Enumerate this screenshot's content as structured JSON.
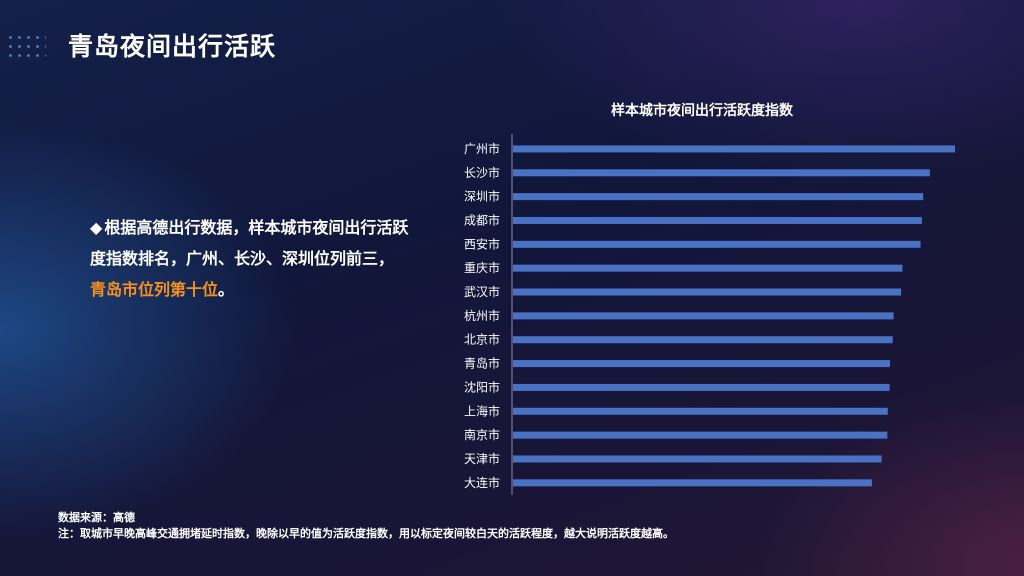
{
  "page": {
    "title": "青岛夜间出行活跃"
  },
  "bullet": {
    "marker": "◆",
    "text_before": "根据高德出行数据，样本城市夜间出行活跃度指数排名，广州、长沙、深圳位列前三，",
    "highlight": "青岛市位列第十位",
    "text_after": "。"
  },
  "footnote": {
    "source": "数据来源：高德",
    "note": "注：取城市早晚高峰交通拥堵延时指数，晚除以早的值为活跃度指数，用以标定夜间较白天的活跃程度，越大说明活跃度越高。"
  },
  "colors": {
    "bar": "#4a72c4",
    "highlight_text": "#f5921b",
    "axis": "#8a8fa8"
  },
  "chart_data": {
    "type": "bar",
    "orientation": "horizontal",
    "title": "样本城市夜间出行活跃度指数",
    "categories": [
      "广州市",
      "长沙市",
      "深圳市",
      "成都市",
      "西安市",
      "重庆市",
      "武汉市",
      "杭州市",
      "北京市",
      "青岛市",
      "沈阳市",
      "上海市",
      "南京市",
      "天津市",
      "大连市"
    ],
    "values": [
      1.0,
      0.943,
      0.928,
      0.925,
      0.922,
      0.881,
      0.878,
      0.861,
      0.859,
      0.853,
      0.852,
      0.848,
      0.847,
      0.834,
      0.812
    ],
    "xlim": [
      0,
      1.0
    ],
    "grid": false,
    "legend": "none"
  }
}
